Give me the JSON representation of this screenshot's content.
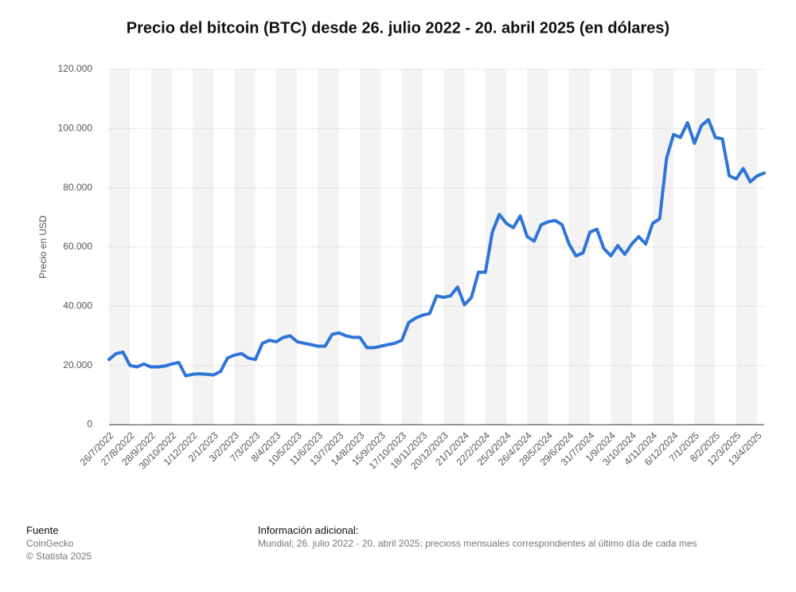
{
  "chart_data": {
    "type": "line",
    "title": "Precio del bitcoin (BTC) desde 26. julio 2022 - 20. abril 2025 (en dólares)",
    "y_label": "Precio en USD",
    "categories": [
      "26/7/2022",
      null,
      null,
      "27/8/2022",
      null,
      null,
      "28/9/2022",
      null,
      null,
      "30/10/2022",
      null,
      null,
      "1/12/2022",
      null,
      null,
      "2/1/2023",
      null,
      null,
      "3/2/2023",
      null,
      null,
      "7/3/2023",
      null,
      null,
      "8/4/2023",
      null,
      null,
      "10/5/2023",
      null,
      null,
      "11/6/2023",
      null,
      null,
      "13/7/2023",
      null,
      null,
      "14/8/2023",
      null,
      null,
      "15/9/2023",
      null,
      null,
      "17/10/2023",
      null,
      null,
      "18/11/2023",
      null,
      null,
      "20/12/2023",
      null,
      null,
      "21/1/2024",
      null,
      null,
      "22/2/2024",
      null,
      null,
      "25/3/2024",
      null,
      null,
      "26/4/2024",
      null,
      null,
      "28/5/2024",
      null,
      null,
      "29/6/2024",
      null,
      null,
      "31/7/2024",
      null,
      null,
      "1/9/2024",
      null,
      null,
      "3/10/2024",
      null,
      null,
      "4/11/2024",
      null,
      null,
      "6/12/2024",
      null,
      null,
      "7/1/2025",
      null,
      null,
      "8/2/2025",
      null,
      null,
      "12/3/2025",
      null,
      null,
      "13/4/2025",
      null
    ],
    "series": [
      {
        "name": "Precio",
        "color": "#2f74d8",
        "values": [
          22000,
          24000,
          24500,
          20000,
          19500,
          20500,
          19500,
          19500,
          19800,
          20500,
          21000,
          16500,
          17000,
          17200,
          17000,
          16800,
          18000,
          22500,
          23500,
          24000,
          22500,
          22000,
          27500,
          28500,
          28000,
          29500,
          30000,
          28000,
          27500,
          27000,
          26500,
          26500,
          30500,
          31000,
          30000,
          29500,
          29500,
          26000,
          26000,
          26500,
          27000,
          27500,
          28500,
          34500,
          36000,
          37000,
          37500,
          43500,
          43000,
          43500,
          46500,
          40500,
          43000,
          51500,
          51500,
          65000,
          71000,
          68000,
          66500,
          70500,
          63500,
          62000,
          67500,
          68500,
          69000,
          67500,
          61000,
          57000,
          58000,
          65000,
          66000,
          59500,
          57000,
          60500,
          57500,
          61000,
          63500,
          61000,
          68000,
          69500,
          90000,
          98000,
          97000,
          102000,
          95000,
          101000,
          103000,
          97000,
          96500,
          84000,
          83000,
          86500,
          82000,
          84000,
          85000
        ]
      }
    ],
    "ylim": [
      0,
      120000
    ],
    "yticks": [
      0,
      {
        "value": 20000,
        "label": "20.000"
      },
      {
        "value": 40000,
        "label": "40.000"
      },
      {
        "value": 60000,
        "label": "60.000"
      },
      {
        "value": 80000,
        "label": "80.000"
      },
      {
        "value": 100000,
        "label": "100.000"
      },
      {
        "value": 120000,
        "label": "120.000"
      }
    ],
    "grid": true
  },
  "footer": {
    "source_title": "Fuente",
    "source": "CoinGecko",
    "copyright": "© Statista 2025",
    "info_title": "Información adicional:",
    "info": "Mundial; 26. julio 2022 - 20. abril 2025; precioss mensuales correspondientes al último día de cada mes"
  }
}
